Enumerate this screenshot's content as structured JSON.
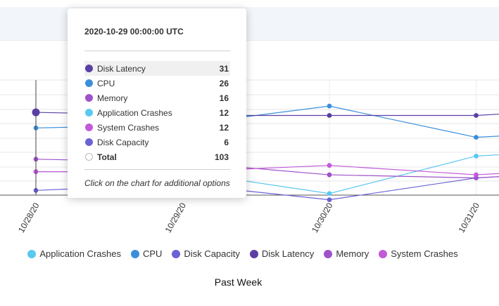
{
  "chart_data": {
    "type": "line",
    "categories": [
      "10/28/20",
      "10/29/20",
      "10/30/20",
      "10/31/20"
    ],
    "series": [
      {
        "name": "Application Crashes",
        "color": "#5bc8f0",
        "values": [
          12,
          12,
          5,
          17
        ]
      },
      {
        "name": "CPU",
        "color": "#3a8fdb",
        "values": [
          26,
          27,
          33,
          23
        ]
      },
      {
        "name": "Disk Capacity",
        "color": "#6b62d6",
        "values": [
          6,
          8,
          3,
          10
        ]
      },
      {
        "name": "Disk Latency",
        "color": "#5a3fa3",
        "values": [
          31,
          30,
          30,
          30
        ]
      },
      {
        "name": "Memory",
        "color": "#9e52c9",
        "values": [
          16,
          15,
          11,
          10
        ]
      },
      {
        "name": "System Crashes",
        "color": "#c25ad8",
        "values": [
          12,
          12,
          14,
          11
        ]
      }
    ],
    "xlabel": "Past Week",
    "legend_position": "bottom",
    "grid": true
  },
  "tooltip": {
    "time": "2020-10-29 00:00:00 UTC",
    "rows": [
      {
        "name": "Disk Latency",
        "value": "31",
        "color": "#5a3fa3"
      },
      {
        "name": "CPU",
        "value": "26",
        "color": "#3a8fdb"
      },
      {
        "name": "Memory",
        "value": "16",
        "color": "#9e52c9"
      },
      {
        "name": "Application Crashes",
        "value": "12",
        "color": "#5bc8f0"
      },
      {
        "name": "System Crashes",
        "value": "12",
        "color": "#c25ad8"
      },
      {
        "name": "Disk Capacity",
        "value": "6",
        "color": "#6b62d6"
      }
    ],
    "total_label": "Total",
    "total_value": "103",
    "hint": "Click on the chart for additional options"
  }
}
